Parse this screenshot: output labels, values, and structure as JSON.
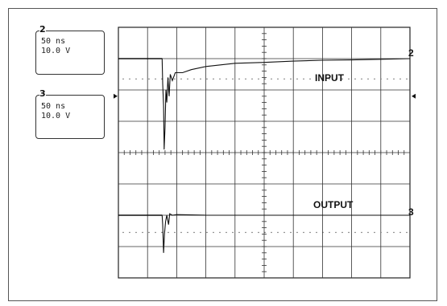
{
  "channels": [
    {
      "id": "2",
      "time_div": "50 ns",
      "volt_div": "10.0 V"
    },
    {
      "id": "3",
      "time_div": "50 ns",
      "volt_div": "10.0 V"
    }
  ],
  "chart_data": {
    "type": "line",
    "grid": {
      "x_divisions": 10,
      "y_divisions": 8,
      "minor_ticks_per_division": 5
    },
    "x_unit": "ns",
    "x_per_div": 50,
    "y_per_div_volts": 10.0,
    "x_range_divisions": [
      0,
      10
    ],
    "y_range_divisions": [
      0,
      8
    ],
    "annotations": [
      "INPUT",
      "OUTPUT"
    ],
    "series": [
      {
        "name": "INPUT",
        "channel": "2",
        "points_div": [
          [
            0,
            0.0
          ],
          [
            1.5,
            0.0
          ],
          [
            1.52,
            -0.8
          ],
          [
            1.55,
            -1.5
          ],
          [
            1.57,
            -2.9
          ],
          [
            1.6,
            -2.2
          ],
          [
            1.63,
            -1.0
          ],
          [
            1.66,
            -1.4
          ],
          [
            1.7,
            -0.6
          ],
          [
            1.74,
            -1.2
          ],
          [
            1.78,
            -0.5
          ],
          [
            1.85,
            -0.7
          ],
          [
            1.95,
            -0.45
          ],
          [
            2.2,
            -0.45
          ],
          [
            2.5,
            -0.35
          ],
          [
            3,
            -0.25
          ],
          [
            4,
            -0.15
          ],
          [
            5,
            -0.12
          ],
          [
            6,
            -0.08
          ],
          [
            7,
            -0.05
          ],
          [
            8,
            -0.04
          ],
          [
            9,
            -0.02
          ],
          [
            10,
            0.0
          ]
        ]
      },
      {
        "name": "OUTPUT",
        "channel": "3",
        "points_div": [
          [
            0,
            0.0
          ],
          [
            1.5,
            0.0
          ],
          [
            1.52,
            -0.3
          ],
          [
            1.55,
            -1.2
          ],
          [
            1.58,
            -0.6
          ],
          [
            1.62,
            -0.2
          ],
          [
            1.66,
            0.0
          ],
          [
            1.72,
            -0.3
          ],
          [
            1.76,
            0.05
          ],
          [
            1.85,
            0.0
          ],
          [
            2,
            0.02
          ],
          [
            3,
            0.0
          ],
          [
            5,
            0.0
          ],
          [
            7,
            0.0
          ],
          [
            10,
            0.0
          ]
        ]
      }
    ]
  }
}
